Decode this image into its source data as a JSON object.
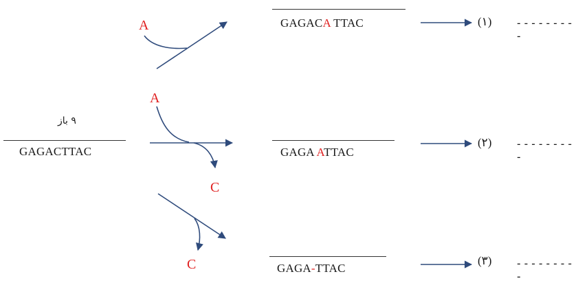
{
  "source": {
    "label": "۹ باز",
    "sequence": "GAGACTTAC"
  },
  "rows": [
    {
      "inserted_base": "A",
      "removed_base": "",
      "result_before": "GAGAC",
      "result_mark": "A",
      "result_after": " TTAC",
      "number": "(۱)",
      "dashes": "---------"
    },
    {
      "inserted_base": "A",
      "removed_base": "C",
      "result_before": "GAGA ",
      "result_mark": "A",
      "result_after": "TTAC",
      "number": "(۲)",
      "dashes": "---------"
    },
    {
      "inserted_base": "",
      "removed_base": "C",
      "result_before": "GAGA",
      "result_mark": "-",
      "result_after": "TTAC",
      "number": "(۳)",
      "dashes": "---------"
    }
  ],
  "colors": {
    "arrow": "#2f4b7c",
    "highlight": "#e02020",
    "text": "#1a1a1a"
  }
}
